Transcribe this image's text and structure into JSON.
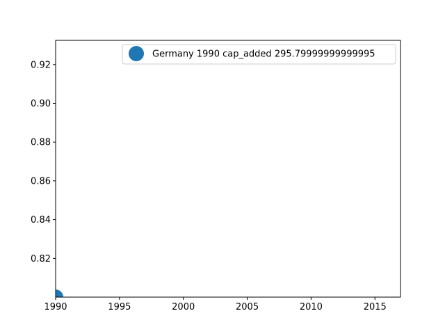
{
  "chart_data": {
    "type": "scatter",
    "title": "",
    "xlabel": "",
    "ylabel": "",
    "xlim": [
      1990,
      2017
    ],
    "ylim": [
      0.8,
      0.9325
    ],
    "xticks": [
      1990,
      1995,
      2000,
      2005,
      2010,
      2015
    ],
    "xtick_labels": [
      "1990",
      "1995",
      "2000",
      "2005",
      "2010",
      "2015"
    ],
    "yticks": [
      0.82,
      0.84,
      0.86,
      0.88,
      0.9,
      0.92
    ],
    "ytick_labels": [
      "0.82",
      "0.84",
      "0.86",
      "0.88",
      "0.90",
      "0.92"
    ],
    "grid": false,
    "legend_position": "top-right",
    "series": [
      {
        "name": "Germany 1990 cap_added 295.79999999999995",
        "color": "#1f77b4",
        "points": [
          {
            "x": 1990,
            "y": 0.8
          }
        ]
      }
    ]
  }
}
